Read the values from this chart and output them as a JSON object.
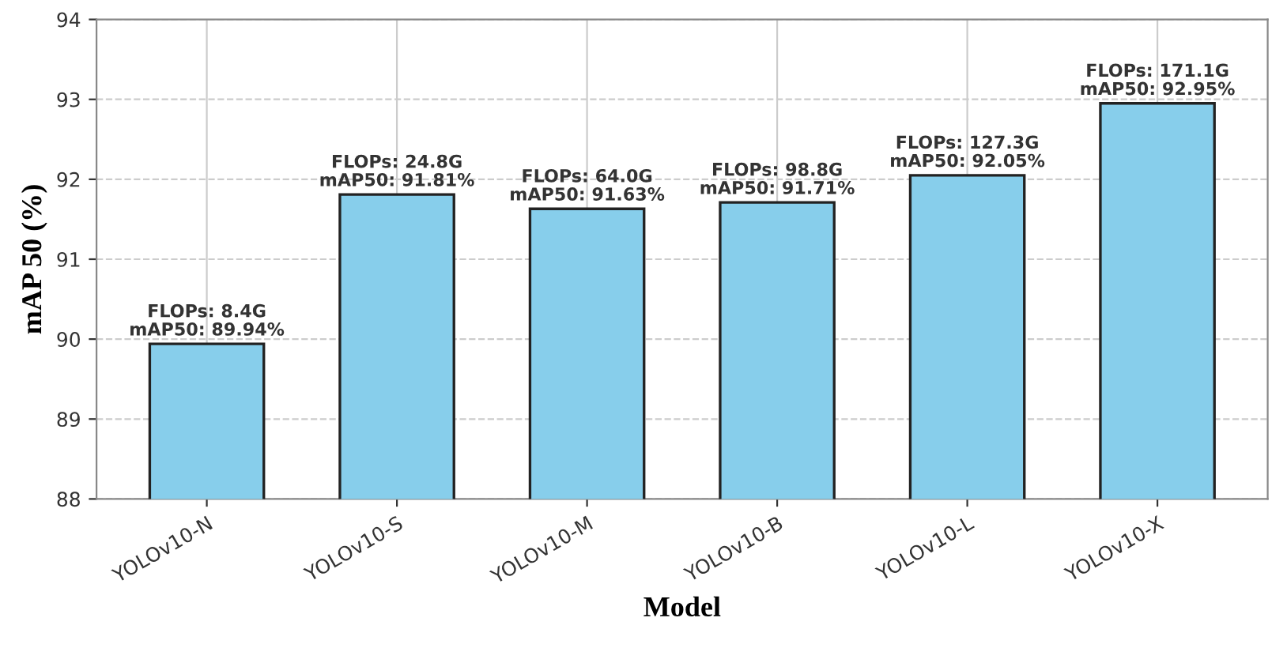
{
  "chart_data": {
    "type": "bar",
    "xlabel": "Model",
    "ylabel": "mAP 50 (%)",
    "categories": [
      "YOLOv10-N",
      "YOLOv10-S",
      "YOLOv10-M",
      "YOLOv10-B",
      "YOLOv10-L",
      "YOLOv10-X"
    ],
    "values": [
      89.94,
      91.81,
      91.63,
      91.71,
      92.05,
      92.95
    ],
    "value_labels": [
      "FLOPs: 8.4G\nmAP50: 89.94%",
      "FLOPs: 24.8G\nmAP50: 91.81%",
      "FLOPs: 64.0G\nmAP50: 91.63%",
      "FLOPs: 98.8G\nmAP50: 91.71%",
      "FLOPs: 127.3G\nmAP50: 92.05%",
      "FLOPs: 171.1G\nmAP50: 92.95%"
    ],
    "color": "#87ceeb",
    "ylim": [
      88,
      94
    ],
    "yticks": [
      88,
      89,
      90,
      91,
      92,
      93,
      94
    ],
    "grid": true
  }
}
